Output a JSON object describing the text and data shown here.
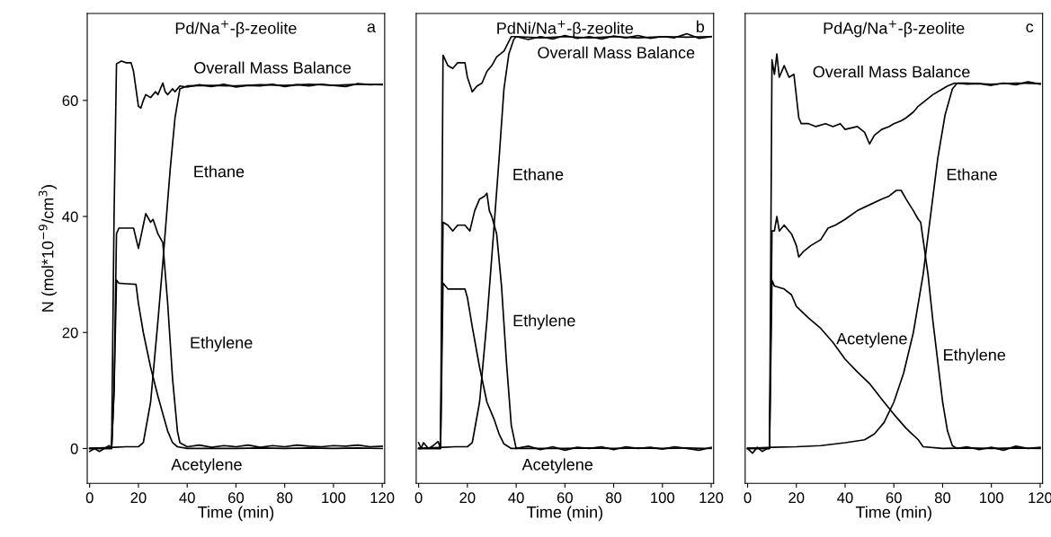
{
  "chart_data": [
    {
      "type": "line",
      "title": "Pd/Na$^{+}$-β-zeolite",
      "xlabel": "Time (min)",
      "ylabel": "N (mol*10$^{−9}$/cm$^{3}$)",
      "xlim": [
        -1,
        121
      ],
      "ylim": [
        -6,
        75
      ],
      "xticks": [
        0,
        20,
        40,
        60,
        80,
        100,
        120
      ],
      "yticks": [
        0,
        20,
        40,
        60
      ],
      "grid": false,
      "legend": false,
      "marker": "none",
      "line_style": "solid",
      "annotations": [
        "a"
      ],
      "series": [
        {
          "name": "Overall Mass Balance",
          "color": "#000000",
          "x": [
            0,
            2,
            4,
            6,
            8,
            9,
            10,
            11,
            13,
            15,
            17,
            18,
            20,
            21,
            22,
            23,
            25,
            27,
            28,
            30,
            31,
            32,
            34,
            35,
            37,
            40,
            45,
            50,
            55,
            60,
            65,
            70,
            75,
            80,
            85,
            90,
            95,
            100,
            105,
            110,
            115,
            120
          ],
          "values": [
            -0.5,
            0,
            -0.5,
            0,
            0.5,
            0,
            40,
            66.3,
            66.8,
            66.5,
            66.5,
            65,
            59,
            58.7,
            60,
            61,
            60.5,
            61.5,
            61,
            63,
            61.5,
            61,
            62,
            61.5,
            62.5,
            62.3,
            62.7,
            62.4,
            62.8,
            62.3,
            62.6,
            62.5,
            62.8,
            62.4,
            62.7,
            62.5,
            62.8,
            62.6,
            62.4,
            62.9,
            62.7,
            62.8
          ]
        },
        {
          "name": "Ethane",
          "color": "#000000",
          "x": [
            0,
            10,
            15,
            20,
            22,
            25,
            28,
            30,
            33,
            35,
            37,
            40,
            50,
            60,
            70,
            80,
            90,
            100,
            110,
            120
          ],
          "values": [
            0,
            0.2,
            0.3,
            0.3,
            1,
            8,
            22,
            32,
            48,
            57,
            62,
            62.5,
            62.6,
            62.5,
            62.7,
            62.6,
            62.8,
            62.6,
            62.8,
            62.7
          ]
        },
        {
          "name": "Ethylene",
          "color": "#000000",
          "x": [
            0,
            9,
            10,
            11,
            12,
            15,
            18,
            20,
            22,
            23,
            25,
            26,
            28,
            30,
            32,
            34,
            36,
            37,
            40,
            45,
            50,
            55,
            60,
            65,
            70,
            75,
            80,
            85,
            90,
            95,
            100,
            105,
            110,
            115,
            120
          ],
          "values": [
            0,
            0,
            10,
            37,
            38,
            38,
            38,
            34.5,
            38.5,
            40.5,
            39,
            39.5,
            37,
            35.5,
            25,
            12,
            3,
            1,
            0.3,
            0.6,
            0.2,
            0.5,
            0.3,
            0.6,
            0.2,
            0.5,
            0.3,
            0.6,
            0.4,
            0.3,
            0.5,
            0.4,
            0.6,
            0.3,
            0.4
          ]
        },
        {
          "name": "Acetylene",
          "color": "#000000",
          "x": [
            0,
            9,
            10,
            11,
            12,
            15,
            19,
            20,
            22,
            25,
            28,
            30,
            32,
            34,
            36,
            40,
            50,
            60,
            70,
            80,
            90,
            100,
            110,
            120
          ],
          "values": [
            0,
            0,
            10,
            29,
            28.5,
            28.4,
            28.3,
            25,
            20,
            14,
            9,
            6,
            3,
            1,
            0.3,
            0,
            0,
            0,
            0.1,
            0,
            0.1,
            0,
            0.1,
            0
          ]
        }
      ]
    },
    {
      "type": "line",
      "title": "PdNi/Na$^{+}$-β-zeolite",
      "xlabel": "Time (min)",
      "xlim": [
        -1,
        121
      ],
      "ylim": [
        -6,
        75
      ],
      "xticks": [
        0,
        20,
        40,
        60,
        80,
        100,
        120
      ],
      "tick_labels": "x",
      "grid": false,
      "legend": false,
      "marker": "none",
      "line_style": "solid",
      "annotations": [
        "b"
      ],
      "series": [
        {
          "name": "Overall Mass Balance",
          "color": "#000000",
          "x": [
            0,
            1,
            2,
            4,
            6,
            8,
            9,
            10,
            12,
            14,
            16,
            19,
            20,
            22,
            24,
            26,
            28,
            30,
            32,
            35,
            38,
            40,
            45,
            50,
            55,
            60,
            65,
            70,
            75,
            80,
            85,
            90,
            95,
            100,
            105,
            110,
            115,
            120
          ],
          "values": [
            1,
            0,
            1,
            0,
            0.5,
            1.2,
            0,
            67.8,
            66,
            65.5,
            66.5,
            66.5,
            64,
            61.5,
            62.5,
            63,
            65,
            66,
            67.5,
            68.5,
            71,
            71,
            70.5,
            71,
            70.6,
            71.2,
            70.7,
            71,
            70.6,
            71.1,
            70.8,
            71.2,
            70.7,
            71,
            70.8,
            71.5,
            70.7,
            71
          ]
        },
        {
          "name": "Ethane",
          "color": "#000000",
          "x": [
            0,
            10,
            15,
            20,
            22,
            25,
            28,
            30,
            33,
            35,
            37,
            39,
            40,
            50,
            60,
            70,
            80,
            90,
            100,
            110,
            120
          ],
          "values": [
            0,
            0.2,
            0.3,
            0.3,
            1,
            8,
            22,
            33,
            50,
            62,
            68,
            70.5,
            71,
            70.8,
            71,
            70.8,
            71,
            70.8,
            71,
            70.9,
            71
          ]
        },
        {
          "name": "Ethylene",
          "color": "#000000",
          "x": [
            0,
            9,
            10,
            12,
            14,
            16,
            19,
            21,
            23,
            25,
            27,
            28,
            29,
            30,
            32,
            34,
            36,
            38,
            40,
            45,
            50,
            55,
            60,
            65,
            70,
            75,
            80,
            85,
            90,
            95,
            100,
            105,
            110,
            115,
            120
          ],
          "values": [
            0,
            0,
            39,
            38.5,
            37.5,
            38.5,
            38.5,
            37.5,
            41,
            43,
            43.5,
            44,
            41,
            40,
            37,
            28,
            15,
            4,
            0,
            0.4,
            -0.2,
            0.3,
            -0.3,
            0.2,
            0,
            0.3,
            -0.2,
            0.3,
            0,
            0.2,
            -0.1,
            0.3,
            0,
            -0.3,
            0.2
          ]
        },
        {
          "name": "Acetylene",
          "color": "#000000",
          "x": [
            0,
            9,
            10,
            12,
            19,
            20,
            22,
            25,
            28,
            31,
            33,
            35,
            38,
            50,
            60,
            70,
            80,
            90,
            100,
            110,
            120
          ],
          "values": [
            0,
            0,
            28.5,
            27.5,
            27.5,
            26,
            21,
            14,
            8,
            5,
            2.5,
            0.8,
            0,
            0,
            0,
            0.1,
            0,
            0.1,
            0,
            0.1,
            0
          ]
        }
      ]
    },
    {
      "type": "line",
      "title": "PdAg/Na$^{+}$-β-zeolite",
      "xlabel": "Time (min)",
      "xlim": [
        -1,
        121
      ],
      "ylim": [
        -6,
        75
      ],
      "xticks": [
        0,
        20,
        40,
        60,
        80,
        100,
        120
      ],
      "tick_labels": "x",
      "grid": false,
      "legend": false,
      "marker": "none",
      "line_style": "solid",
      "annotations": [
        "c"
      ],
      "series": [
        {
          "name": "Overall Mass Balance",
          "color": "#000000",
          "x": [
            0,
            2,
            4,
            6,
            8,
            9,
            10,
            11,
            12,
            13,
            15,
            17,
            19,
            21,
            22,
            25,
            28,
            32,
            35,
            38,
            40,
            45,
            48,
            50,
            52,
            55,
            58,
            60,
            63,
            65,
            68,
            70,
            73,
            76,
            80,
            82,
            85,
            90,
            95,
            100,
            105,
            110,
            115,
            120
          ],
          "values": [
            0,
            -0.8,
            0.2,
            -0.5,
            0,
            0,
            67,
            64.5,
            68,
            64,
            66,
            64,
            64.5,
            57,
            56,
            56,
            55.5,
            56,
            55.5,
            56,
            55,
            55.5,
            54.5,
            52.5,
            54,
            55,
            55.5,
            56,
            56.5,
            57,
            58,
            59,
            60,
            61,
            62,
            62.5,
            63,
            62.8,
            62.9,
            62.6,
            63,
            62.7,
            63.2,
            62.8
          ]
        },
        {
          "name": "Ethane",
          "color": "#000000",
          "x": [
            0,
            10,
            20,
            30,
            40,
            48,
            52,
            56,
            60,
            64,
            68,
            72,
            75,
            78,
            81,
            84,
            86,
            90,
            100,
            110,
            120
          ],
          "values": [
            0,
            0.2,
            0.3,
            0.5,
            1,
            1.5,
            2.5,
            4.5,
            8,
            13,
            20,
            30,
            40,
            50,
            57.5,
            62,
            63,
            63,
            62.8,
            63,
            62.9
          ]
        },
        {
          "name": "Ethylene",
          "color": "#000000",
          "x": [
            0,
            9,
            10,
            11,
            12,
            13,
            15,
            18,
            20,
            21,
            23,
            26,
            30,
            33,
            36,
            40,
            45,
            50,
            55,
            58,
            61,
            63,
            65,
            68,
            70,
            71,
            72,
            74,
            76,
            78,
            80,
            82,
            84,
            86,
            90,
            95,
            100,
            105,
            110,
            115,
            120
          ],
          "values": [
            0,
            0,
            37.5,
            37.5,
            40,
            37.5,
            38.5,
            37,
            35,
            33,
            34,
            35,
            36,
            38,
            38.5,
            39.5,
            41,
            42,
            43,
            43.5,
            44.5,
            44.5,
            43,
            41,
            39.5,
            39,
            36,
            30,
            22,
            15,
            8,
            3,
            0.5,
            0,
            0.3,
            -0.2,
            0.2,
            -0.3,
            0.4,
            0,
            0.2
          ]
        },
        {
          "name": "Acetylene",
          "color": "#000000",
          "x": [
            0,
            9,
            10,
            11,
            15,
            18,
            20,
            25,
            30,
            35,
            40,
            45,
            50,
            55,
            60,
            65,
            70,
            72,
            80,
            90,
            100,
            110,
            120
          ],
          "values": [
            0,
            0,
            29,
            28,
            27.5,
            26.5,
            24.5,
            22.5,
            20.7,
            18.3,
            15.4,
            13.2,
            11.2,
            8.5,
            5.9,
            3.5,
            1.5,
            0.3,
            0,
            0.1,
            0,
            0.1,
            0
          ]
        }
      ]
    }
  ]
}
